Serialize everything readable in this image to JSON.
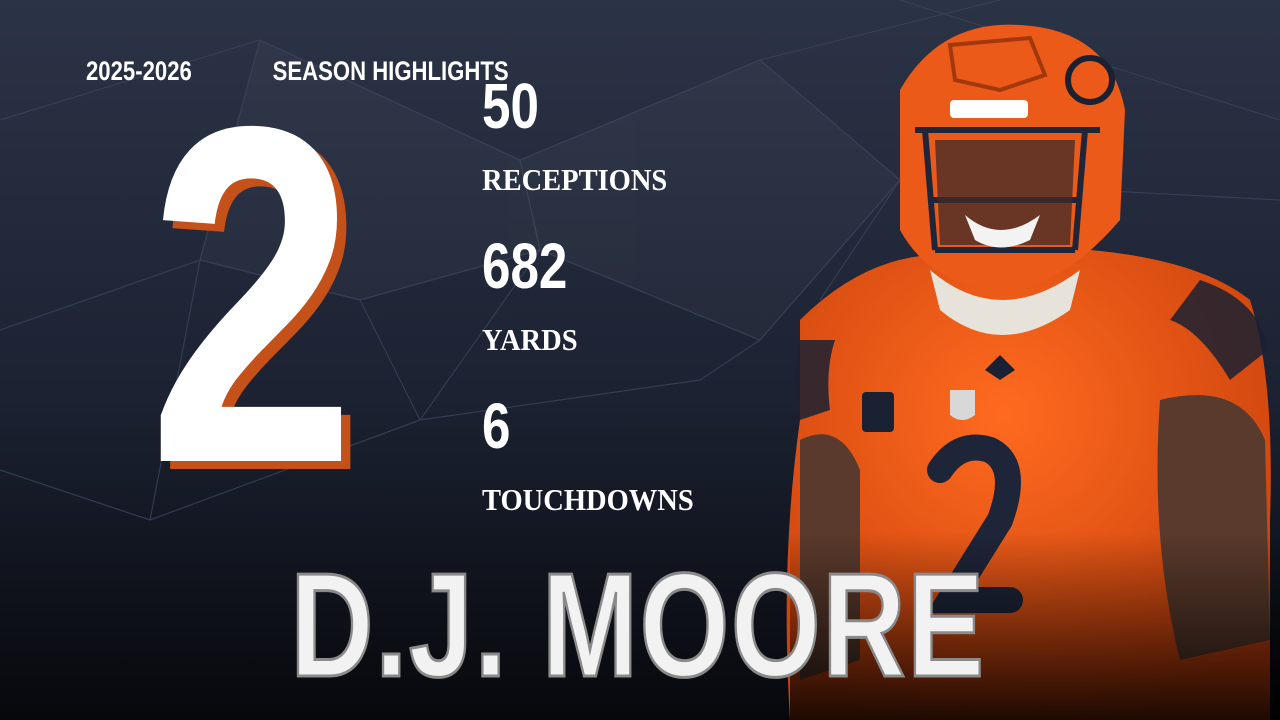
{
  "header": {
    "season": "2025-2026",
    "title": "SEASON HIGHLIGHTS"
  },
  "jersey_number": 2,
  "stats": [
    {
      "value": 50,
      "label": "RECEPTIONS"
    },
    {
      "value": 682,
      "label": "YARDS"
    },
    {
      "value": 6,
      "label": "TOUCHDOWNS"
    }
  ],
  "player": {
    "name": "D.J. MOORE"
  }
}
